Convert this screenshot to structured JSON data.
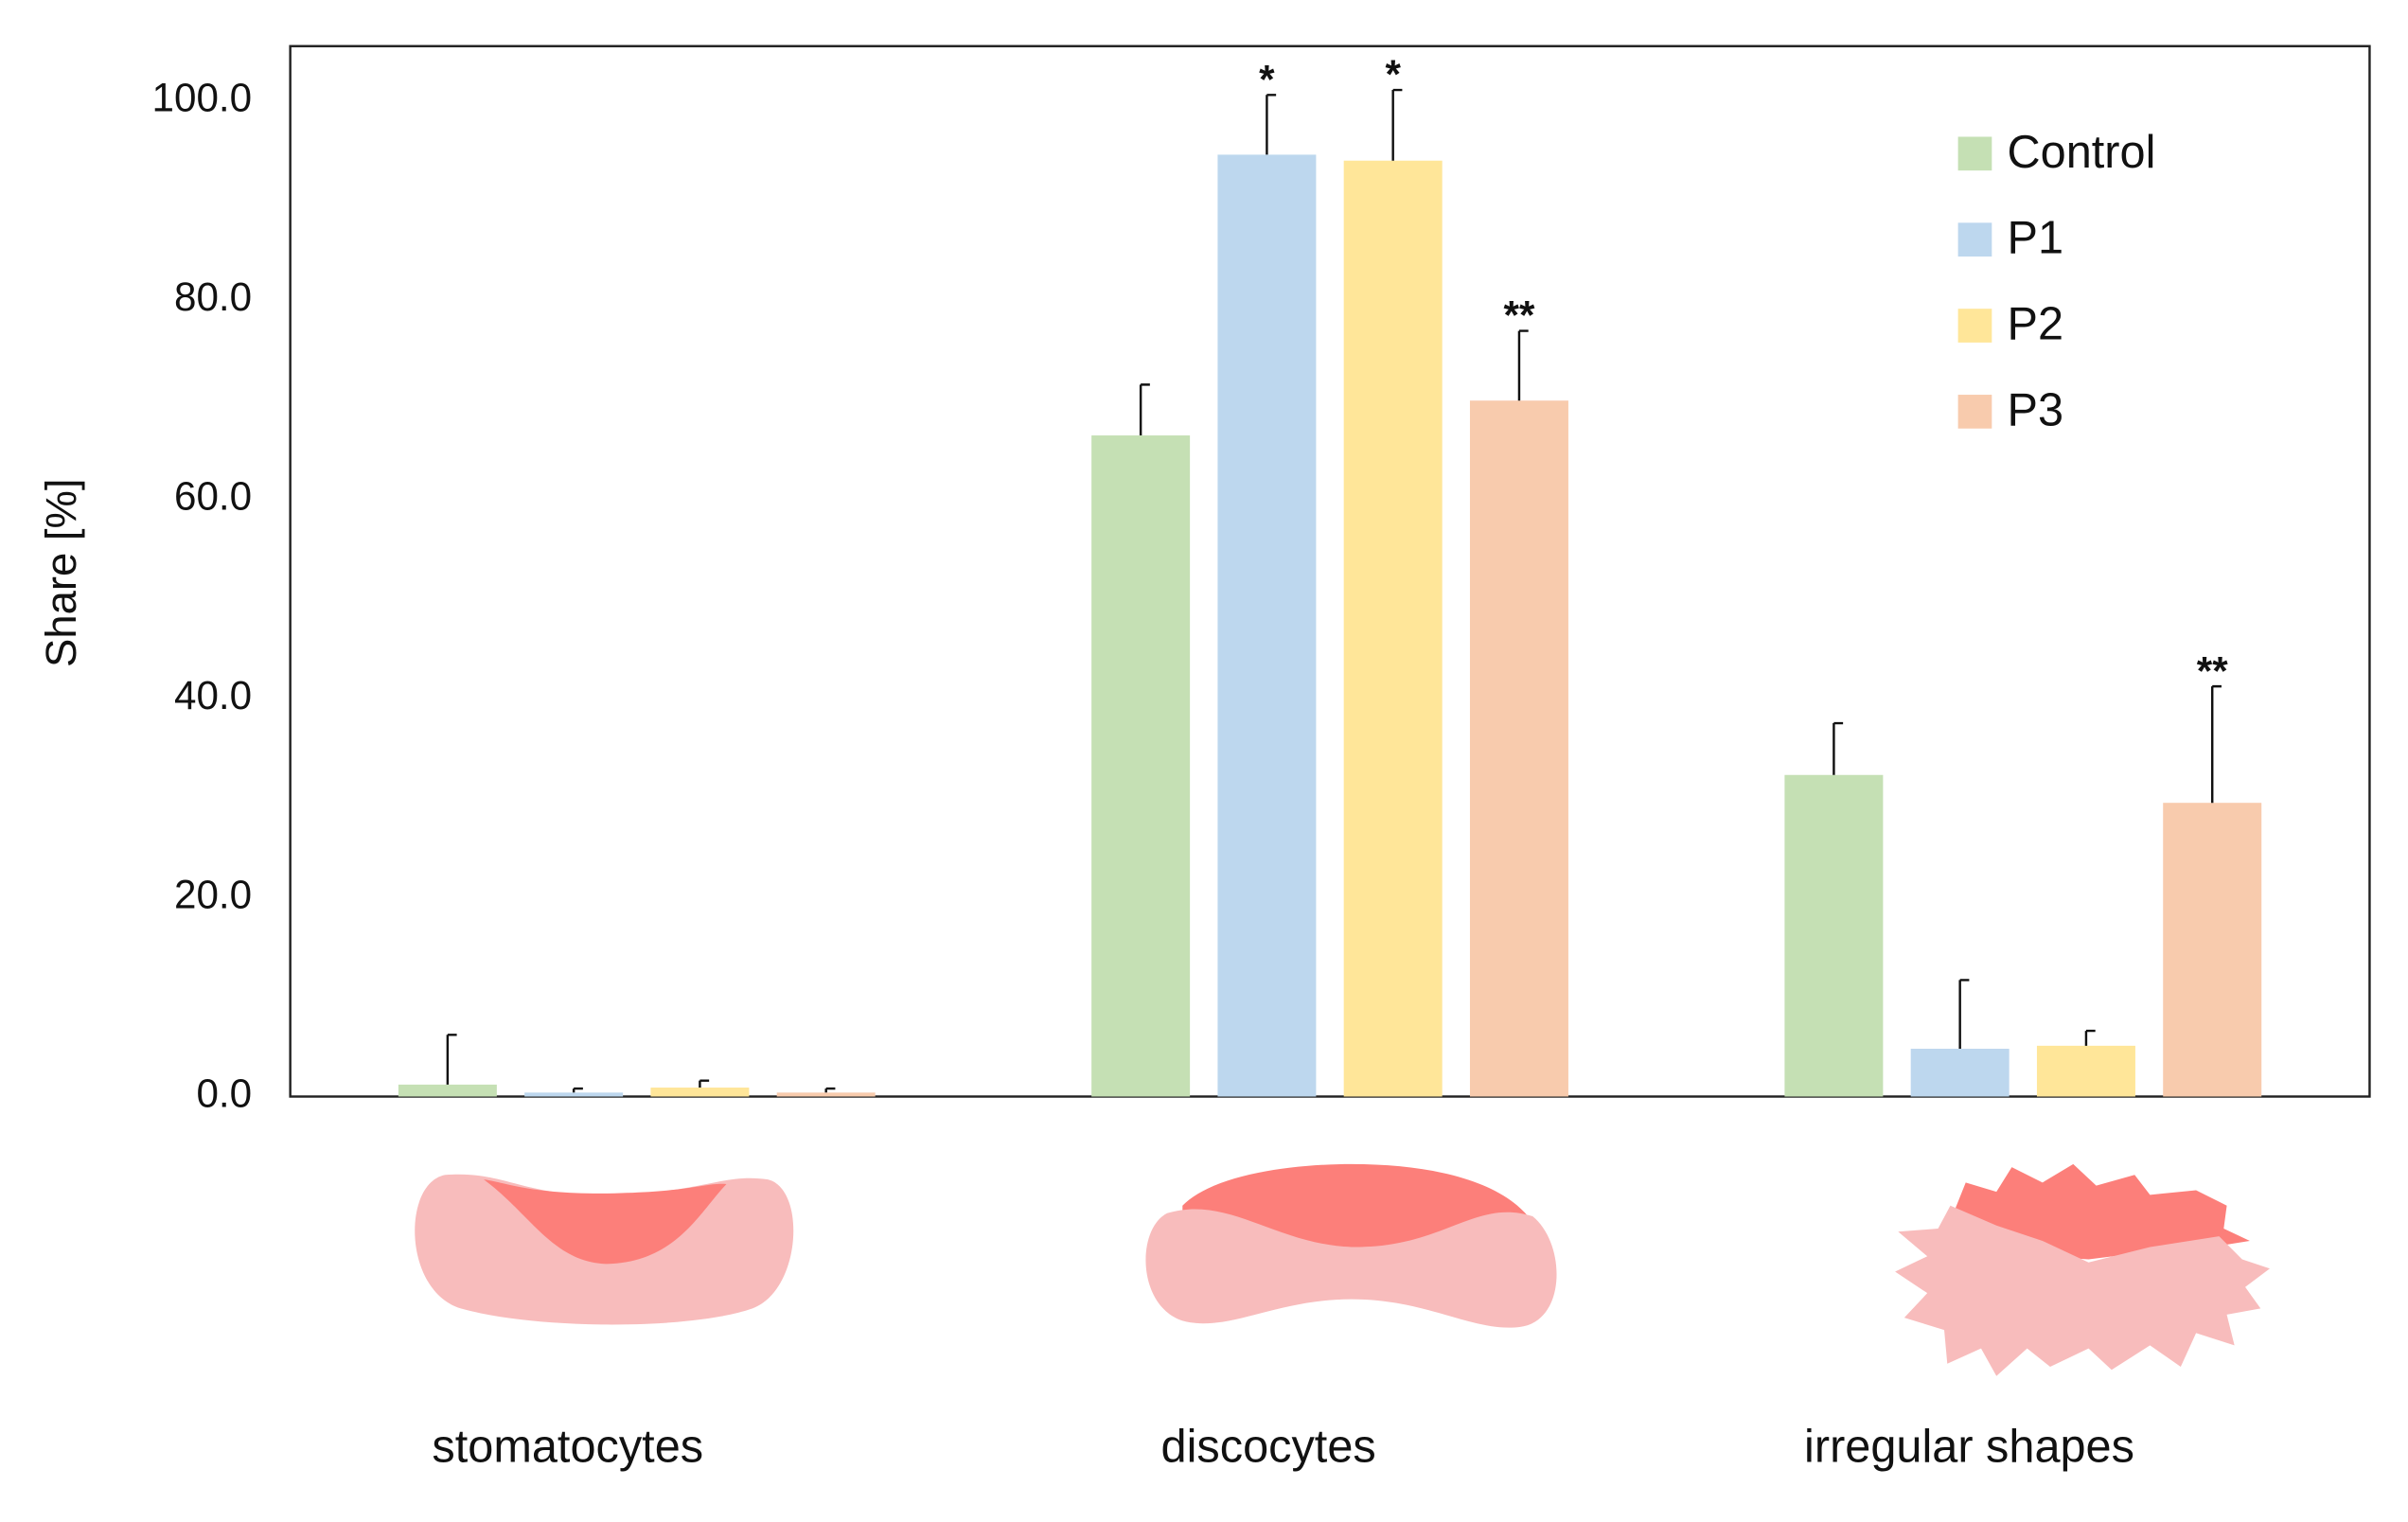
{
  "chart_data": {
    "type": "bar",
    "y_label": "Share [%]",
    "categories": [
      "stomatocytes",
      "discocytes",
      "irregular shapes"
    ],
    "series": [
      {
        "name": "Control",
        "color": "#c5e0b4",
        "values": [
          1.2,
          66.4,
          32.3
        ],
        "errors": [
          5.0,
          5.1,
          5.2
        ],
        "significance": [
          null,
          null,
          null
        ]
      },
      {
        "name": "P1",
        "color": "#bdd7ee",
        "values": [
          0.4,
          94.6,
          4.8
        ],
        "errors": [
          0.4,
          6.0,
          6.9
        ],
        "significance": [
          null,
          "*",
          null
        ]
      },
      {
        "name": "P2",
        "color": "#ffe699",
        "values": [
          0.9,
          94.0,
          5.1
        ],
        "errors": [
          0.7,
          7.1,
          1.5
        ],
        "significance": [
          null,
          "*",
          null
        ]
      },
      {
        "name": "P3",
        "color": "#f8cbad",
        "values": [
          0.4,
          69.9,
          29.5
        ],
        "errors": [
          0.4,
          7.0,
          11.7
        ],
        "significance": [
          null,
          "**",
          "**"
        ]
      }
    ],
    "ylim": [
      0,
      105.5
    ],
    "yticks": [
      {
        "value": 0,
        "label": "0.0"
      },
      {
        "value": 20,
        "label": "20.0"
      },
      {
        "value": 40,
        "label": "40.0"
      },
      {
        "value": 60,
        "label": "60.0"
      },
      {
        "value": 80,
        "label": "80.0"
      },
      {
        "value": 100,
        "label": "100.0"
      }
    ],
    "legend_position": "upper right",
    "grid": false
  }
}
